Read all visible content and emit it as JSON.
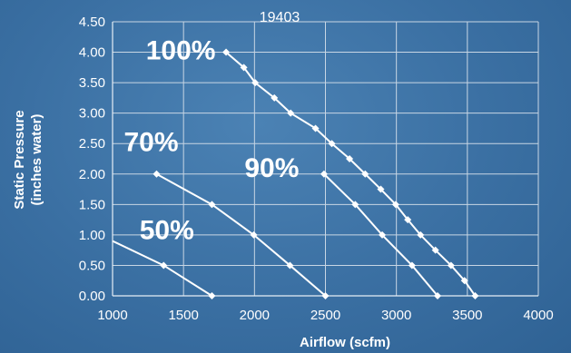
{
  "chart_data": {
    "type": "line",
    "title": "19403",
    "xlabel": "Airflow (scfm)",
    "ylabel_lines": [
      "Static Pressure",
      "(inches water)"
    ],
    "xlim": [
      1000,
      4000
    ],
    "ylim": [
      0,
      4.5
    ],
    "x_ticks": [
      "1000",
      "1500",
      "2000",
      "2500",
      "3000",
      "3500",
      "4000"
    ],
    "y_ticks": [
      "0.00",
      "0.50",
      "1.00",
      "1.50",
      "2.00",
      "2.50",
      "3.00",
      "3.50",
      "4.00",
      "4.50"
    ],
    "grid": true,
    "series": [
      {
        "name": "100%",
        "points": [
          [
            1800,
            4.0
          ],
          [
            1925,
            3.75
          ],
          [
            2005,
            3.5
          ],
          [
            2140,
            3.25
          ],
          [
            2255,
            3.0
          ],
          [
            2430,
            2.75
          ],
          [
            2545,
            2.5
          ],
          [
            2670,
            2.25
          ],
          [
            2780,
            2.0
          ],
          [
            2890,
            1.75
          ],
          [
            2995,
            1.5
          ],
          [
            3080,
            1.25
          ],
          [
            3170,
            1.0
          ],
          [
            3275,
            0.75
          ],
          [
            3385,
            0.5
          ],
          [
            3480,
            0.25
          ],
          [
            3555,
            0.0
          ]
        ]
      },
      {
        "name": "90%",
        "points": [
          [
            2490,
            2.0
          ],
          [
            2710,
            1.5
          ],
          [
            2900,
            1.0
          ],
          [
            3110,
            0.5
          ],
          [
            3290,
            0.0
          ]
        ]
      },
      {
        "name": "70%",
        "points": [
          [
            1310,
            2.0
          ],
          [
            1700,
            1.5
          ],
          [
            1995,
            1.0
          ],
          [
            2250,
            0.5
          ],
          [
            2500,
            0.0
          ]
        ]
      },
      {
        "name": "50%",
        "points": [
          [
            1000,
            0.9
          ],
          [
            1360,
            0.5
          ],
          [
            1700,
            0.0
          ]
        ],
        "marker_from": 1
      }
    ]
  }
}
